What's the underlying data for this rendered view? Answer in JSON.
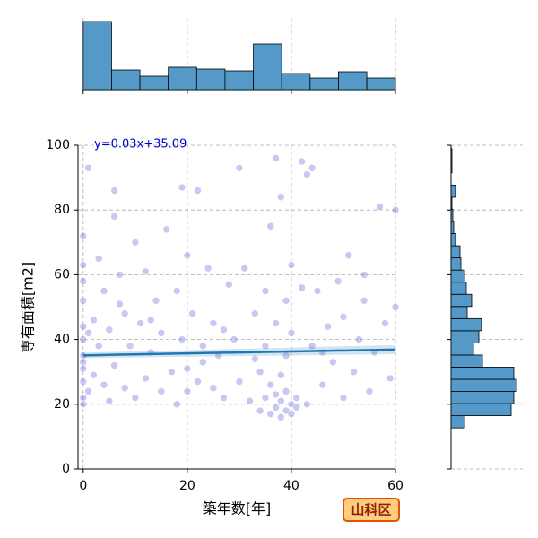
{
  "chart_data": {
    "type": "jointplot",
    "xlabel": "築年数[年]",
    "ylabel": "専有面積[m2]",
    "annotation": "y=0.03x+35.09",
    "badge": "山科区",
    "xlim": [
      -1,
      60
    ],
    "ylim": [
      0,
      100
    ],
    "xticks": [
      0,
      20,
      40,
      60
    ],
    "yticks": [
      0,
      20,
      40,
      60,
      80,
      100
    ],
    "grid": true,
    "point_color": "#3a3ad0",
    "line_color": "#1f77b4",
    "hist_color": "#5499c7",
    "regression": {
      "slope": 0.03,
      "intercept": 35.09
    },
    "x": [
      0,
      0,
      0,
      0,
      0,
      0,
      0,
      0,
      0,
      0,
      0,
      0,
      1,
      1,
      2,
      2,
      3,
      3,
      4,
      4,
      5,
      5,
      6,
      6,
      6,
      7,
      8,
      8,
      9,
      10,
      10,
      11,
      12,
      12,
      13,
      14,
      15,
      15,
      16,
      17,
      18,
      18,
      19,
      19,
      20,
      20,
      20,
      21,
      22,
      22,
      23,
      24,
      25,
      25,
      26,
      27,
      28,
      29,
      30,
      30,
      31,
      32,
      33,
      34,
      34,
      35,
      35,
      35,
      36,
      36,
      36,
      37,
      37,
      37,
      37,
      38,
      38,
      38,
      38,
      39,
      39,
      39,
      39,
      40,
      40,
      40,
      40,
      41,
      41,
      42,
      42,
      43,
      44,
      45,
      46,
      47,
      48,
      49,
      50,
      50,
      51,
      52,
      53,
      54,
      55,
      56,
      57,
      58,
      59,
      60,
      60,
      1,
      7,
      13,
      23,
      27,
      33,
      43,
      44,
      46,
      54
    ],
    "y": [
      22,
      27,
      31,
      35,
      40,
      44,
      52,
      58,
      63,
      20,
      72,
      33,
      24,
      93,
      29,
      46,
      38,
      65,
      26,
      55,
      21,
      43,
      86,
      78,
      32,
      60,
      25,
      48,
      38,
      70,
      22,
      45,
      28,
      61,
      36,
      52,
      24,
      42,
      74,
      30,
      20,
      55,
      87,
      40,
      31,
      66,
      24,
      48,
      86,
      27,
      38,
      62,
      25,
      45,
      35,
      22,
      57,
      40,
      93,
      27,
      62,
      21,
      48,
      30,
      18,
      55,
      22,
      38,
      17,
      26,
      75,
      19,
      23,
      96,
      45,
      16,
      21,
      29,
      84,
      18,
      24,
      52,
      35,
      20,
      17,
      42,
      63,
      22,
      19,
      95,
      56,
      20,
      38,
      55,
      26,
      44,
      33,
      58,
      22,
      47,
      66,
      30,
      40,
      52,
      24,
      36,
      81,
      45,
      28,
      80,
      50,
      42,
      51,
      46,
      33,
      43,
      34,
      91,
      93,
      36,
      60
    ],
    "x_hist": {
      "bins": [
        0,
        5.45,
        10.9,
        16.35,
        21.8,
        27.25,
        32.7,
        38.15,
        43.6,
        49.05,
        54.5,
        60
      ],
      "counts": [
        76,
        22,
        15,
        25,
        23,
        21,
        51,
        18,
        13,
        20,
        13
      ],
      "ylim": [
        0,
        80
      ]
    },
    "y_hist": {
      "bins": [
        12.7,
        16.45,
        20.2,
        23.95,
        27.7,
        31.45,
        35.2,
        38.95,
        42.7,
        46.45,
        50.2,
        53.95,
        57.7,
        61.45,
        65.2,
        68.95,
        72.7,
        76.45,
        80.2,
        83.95,
        87.7,
        91.45,
        95.2,
        98.95
      ],
      "counts": [
        15,
        67,
        70,
        73,
        70,
        35,
        25,
        31,
        34,
        18,
        23,
        17,
        15,
        11,
        10,
        5,
        3,
        2,
        1,
        5,
        0,
        1,
        1
      ],
      "xlim": [
        0,
        80
      ]
    }
  }
}
